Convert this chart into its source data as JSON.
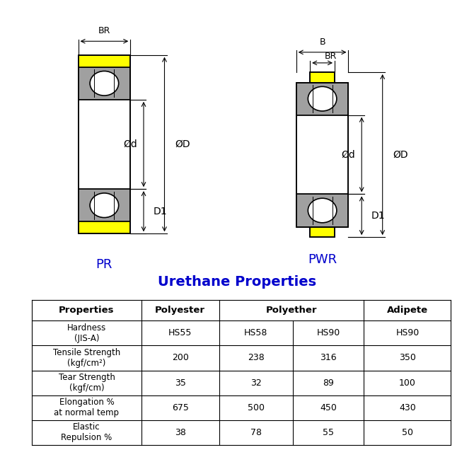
{
  "title_color": "#0000CC",
  "diagram_label_color": "#0000CC",
  "line_color": "#000000",
  "yellow_color": "#FFFF00",
  "gray_color": "#A0A0A0",
  "white_color": "#FFFFFF",
  "bg_color": "#FFFFFF",
  "pr_label": "PR",
  "pwr_label": "PWR",
  "table_title": "Urethane Properties",
  "table_rows": [
    [
      "Hardness\n(JIS-A)",
      "HS55",
      "HS58",
      "HS90",
      "HS90"
    ],
    [
      "Tensile Strength\n(kgf/cm²)",
      "200",
      "238",
      "316",
      "350"
    ],
    [
      "Tear Strength\n(kgf/cm)",
      "35",
      "32",
      "89",
      "100"
    ],
    [
      "Elongation %\nat normal temp",
      "675",
      "500",
      "450",
      "430"
    ],
    [
      "Elastic\nRepulsion %",
      "38",
      "78",
      "55",
      "50"
    ]
  ]
}
